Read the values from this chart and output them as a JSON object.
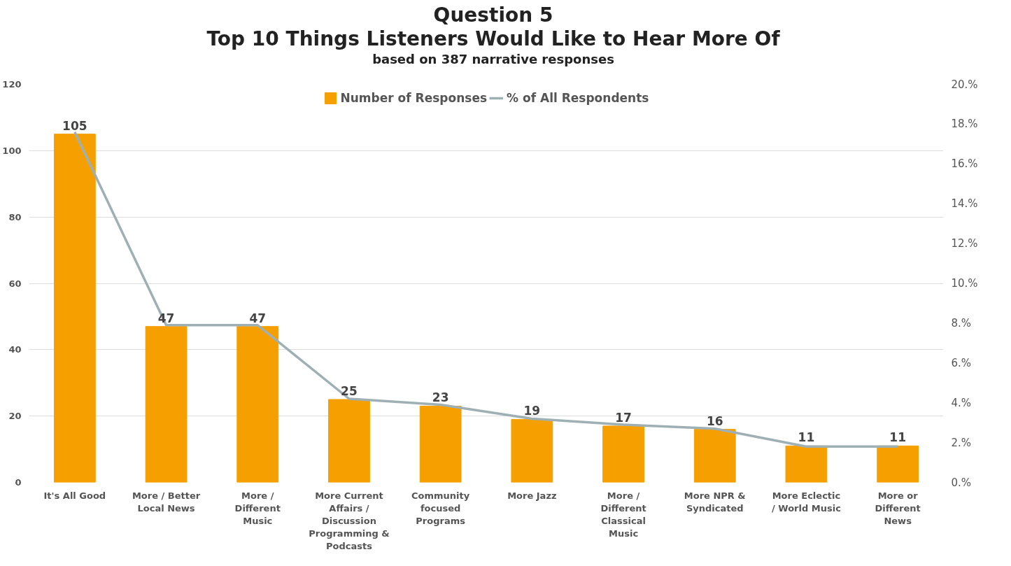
{
  "chart_data": {
    "type": "bar",
    "title": "Question 5\nTop 10 Things Listeners Would Like to Hear More Of",
    "subtitle": "based on 387 narrative responses",
    "categories": [
      "It's All Good",
      "More / Better Local News",
      "More / Different Music",
      "More Current Affairs / Discussion Programming & Podcasts",
      "Community focused Programs",
      "More Jazz",
      "More / Different Classical Music",
      "More NPR & Syndicated",
      "More Eclectic / World Music",
      "More or Different News"
    ],
    "series": [
      {
        "name": "Number of Responses",
        "color": "#f5a000",
        "values": [
          105,
          47,
          47,
          25,
          23,
          19,
          17,
          16,
          11,
          11
        ],
        "value_labels": [
          "105",
          "47",
          "47",
          "25",
          "23",
          "19",
          "17",
          "16",
          "11",
          "11"
        ]
      },
      {
        "name": "% of All Respondents",
        "type": "line",
        "axis": "y2",
        "color": "#9fb0b5",
        "values": [
          17.6,
          7.9,
          7.9,
          4.2,
          3.9,
          3.2,
          2.9,
          2.7,
          1.8,
          1.8
        ]
      }
    ],
    "ylim": [
      0,
      120
    ],
    "yticks": [
      0,
      20,
      40,
      60,
      80,
      100,
      120
    ],
    "y2lim": [
      0,
      20
    ],
    "y2ticks": [
      {
        "value": 0,
        "label": "0.%"
      },
      {
        "value": 2,
        "label": "2.%"
      },
      {
        "value": 4,
        "label": "4.%"
      },
      {
        "value": 6,
        "label": "6.%"
      },
      {
        "value": 8,
        "label": "8.%"
      },
      {
        "value": 10,
        "label": "10.%"
      },
      {
        "value": 12,
        "label": "12.%"
      },
      {
        "value": 14,
        "label": "14.%"
      },
      {
        "value": 16,
        "label": "16.%"
      },
      {
        "value": 18,
        "label": "18.%"
      },
      {
        "value": 20,
        "label": "20.%"
      }
    ],
    "grid": "y",
    "legend": "top",
    "marker": "none",
    "line_style": "solid"
  }
}
